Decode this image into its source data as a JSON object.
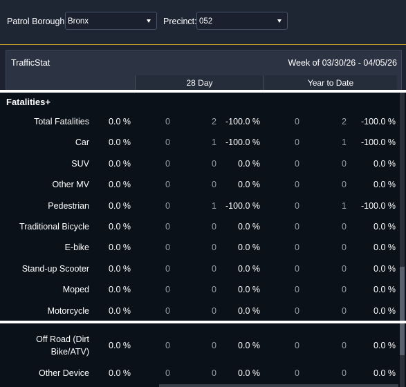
{
  "filters": {
    "borough_label": "Patrol Borough:",
    "borough_value": "Bronx",
    "precinct_label": "Precinct:",
    "precinct_value": "052"
  },
  "report": {
    "title": "TrafficStat",
    "week": "Week of 03/30/26 - 04/05/26",
    "col_28day": "28 Day",
    "col_ytd": "Year to Date"
  },
  "section": {
    "title": "Fatalities+"
  },
  "rows": [
    {
      "label": "Total Fatalities",
      "pct": "0.0 %",
      "d1": "0",
      "d2": "2",
      "dchg": "-100.0 %",
      "y1": "0",
      "y2": "2",
      "ychg": "-100.0 %"
    },
    {
      "label": "Car",
      "pct": "0.0 %",
      "d1": "0",
      "d2": "1",
      "dchg": "-100.0 %",
      "y1": "0",
      "y2": "1",
      "ychg": "-100.0 %"
    },
    {
      "label": "SUV",
      "pct": "0.0 %",
      "d1": "0",
      "d2": "0",
      "dchg": "0.0 %",
      "y1": "0",
      "y2": "0",
      "ychg": "0.0 %"
    },
    {
      "label": "Other MV",
      "pct": "0.0 %",
      "d1": "0",
      "d2": "0",
      "dchg": "0.0 %",
      "y1": "0",
      "y2": "0",
      "ychg": "0.0 %"
    },
    {
      "label": "Pedestrian",
      "pct": "0.0 %",
      "d1": "0",
      "d2": "1",
      "dchg": "-100.0 %",
      "y1": "0",
      "y2": "1",
      "ychg": "-100.0 %"
    },
    {
      "label": "Traditional Bicycle",
      "pct": "0.0 %",
      "d1": "0",
      "d2": "0",
      "dchg": "0.0 %",
      "y1": "0",
      "y2": "0",
      "ychg": "0.0 %"
    },
    {
      "label": "E-bike",
      "pct": "0.0 %",
      "d1": "0",
      "d2": "0",
      "dchg": "0.0 %",
      "y1": "0",
      "y2": "0",
      "ychg": "0.0 %"
    },
    {
      "label": "Stand-up Scooter",
      "pct": "0.0 %",
      "d1": "0",
      "d2": "0",
      "dchg": "0.0 %",
      "y1": "0",
      "y2": "0",
      "ychg": "0.0 %"
    },
    {
      "label": "Moped",
      "pct": "0.0 %",
      "d1": "0",
      "d2": "0",
      "dchg": "0.0 %",
      "y1": "0",
      "y2": "0",
      "ychg": "0.0 %"
    },
    {
      "label": "Motorcycle",
      "pct": "0.0 %",
      "d1": "0",
      "d2": "0",
      "dchg": "0.0 %",
      "y1": "0",
      "y2": "0",
      "ychg": "0.0 %"
    }
  ],
  "rows_lower": [
    {
      "label_line1": "Off Road (Dirt",
      "label_line2": "Bike/ATV)",
      "pct": "0.0 %",
      "d1": "0",
      "d2": "0",
      "dchg": "0.0 %",
      "y1": "0",
      "y2": "0",
      "ychg": "0.0 %"
    },
    {
      "label": "Other Device",
      "pct": "0.0 %",
      "d1": "0",
      "d2": "0",
      "dchg": "0.0 %",
      "y1": "0",
      "y2": "0",
      "ychg": "0.0 %"
    }
  ],
  "colors": {
    "accent_gold": "#c9a227",
    "table_bg": "#0a1119",
    "header_bg": "#2c3444",
    "muted_text": "#9aa1ac"
  }
}
